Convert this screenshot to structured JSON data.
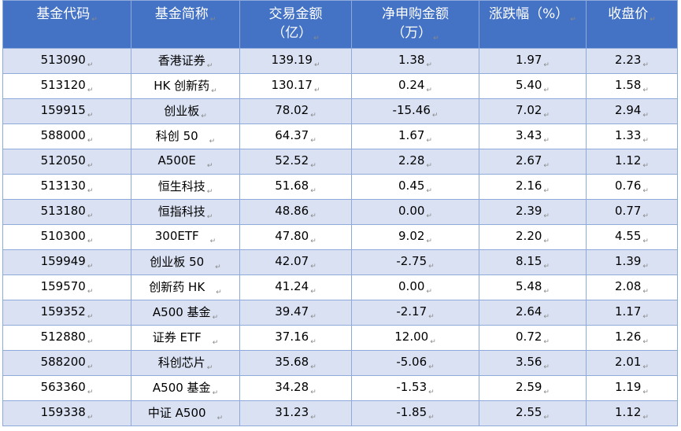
{
  "header": {
    "code": "基金代码",
    "name": "基金简称",
    "volume_1": "交易金额",
    "volume_2": "（亿）",
    "netbuy_1": "净申购金额",
    "netbuy_2": "（万）",
    "change": "涨跌幅（%）",
    "close": "收盘价"
  },
  "para_mark": "↵",
  "rows": [
    {
      "code": "513090",
      "name": "香港证券",
      "volume": "139.19",
      "netbuy": "1.38",
      "change": "1.97",
      "close": "2.23"
    },
    {
      "code": "513120",
      "name": "HK 创新药",
      "volume": "130.17",
      "netbuy": "0.24",
      "change": "5.40",
      "close": "1.58"
    },
    {
      "code": "159915",
      "name": "创业板",
      "volume": "78.02",
      "netbuy": "-15.46",
      "change": "7.02",
      "close": "2.94"
    },
    {
      "code": "588000",
      "name": "科创 50",
      "volume": "64.37",
      "netbuy": "1.67",
      "change": "3.43",
      "close": "1.33"
    },
    {
      "code": "512050",
      "name": "A500E",
      "volume": "52.52",
      "netbuy": "2.28",
      "change": "2.67",
      "close": "1.12"
    },
    {
      "code": "513130",
      "name": "恒生科技",
      "volume": "51.68",
      "netbuy": "0.45",
      "change": "2.16",
      "close": "0.76"
    },
    {
      "code": "513180",
      "name": "恒指科技",
      "volume": "48.86",
      "netbuy": "0.00",
      "change": "2.39",
      "close": "0.77"
    },
    {
      "code": "510300",
      "name": "300ETF",
      "volume": "47.80",
      "netbuy": "9.02",
      "change": "2.20",
      "close": "4.55"
    },
    {
      "code": "159949",
      "name": "创业板 50",
      "volume": "42.07",
      "netbuy": "-2.75",
      "change": "8.15",
      "close": "1.39"
    },
    {
      "code": "159570",
      "name": "创新药 HK",
      "volume": "41.24",
      "netbuy": "0.00",
      "change": "5.48",
      "close": "2.08"
    },
    {
      "code": "159352",
      "name": "A500 基金",
      "volume": "39.47",
      "netbuy": "-2.17",
      "change": "2.64",
      "close": "1.17"
    },
    {
      "code": "512880",
      "name": "证券 ETF",
      "volume": "37.16",
      "netbuy": "12.00",
      "change": "0.72",
      "close": "1.26"
    },
    {
      "code": "588200",
      "name": "科创芯片",
      "volume": "35.68",
      "netbuy": "-5.06",
      "change": "3.56",
      "close": "2.01"
    },
    {
      "code": "563360",
      "name": "A500 基金",
      "volume": "34.28",
      "netbuy": "-1.53",
      "change": "2.59",
      "close": "1.19"
    },
    {
      "code": "159338",
      "name": "中证 A500",
      "volume": "31.23",
      "netbuy": "-1.85",
      "change": "2.55",
      "close": "1.12"
    }
  ]
}
